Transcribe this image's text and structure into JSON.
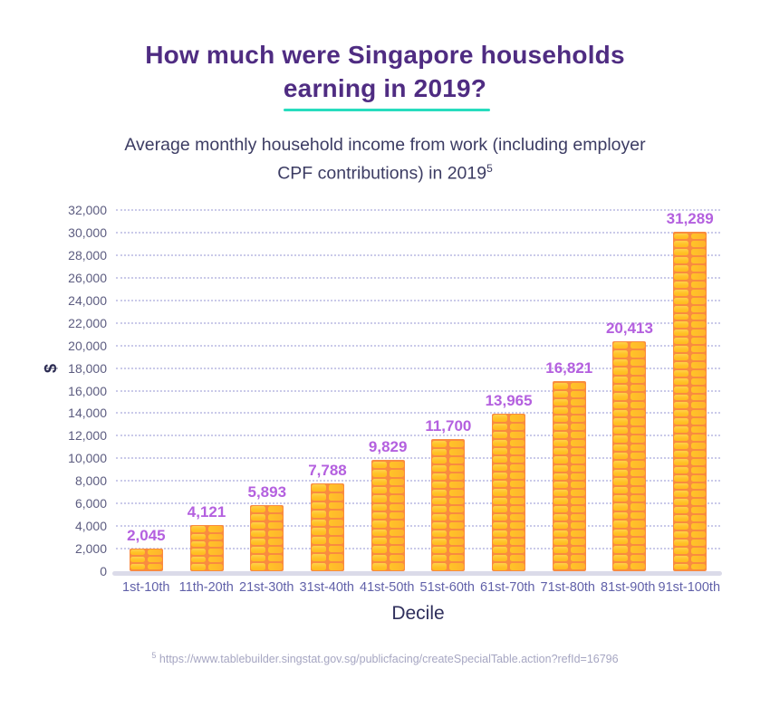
{
  "title": {
    "full": "How much were Singapore households earning in 2019?",
    "line1": "How much were Singapore households",
    "line2": "earning in 2019?"
  },
  "subtitle": {
    "full": "Average monthly household income from work (including employer CPF contributions) in 2019",
    "line1": "Average monthly household income from work (including employer",
    "line2": "CPF contributions) in 2019",
    "superscript": "5"
  },
  "chart_data": {
    "type": "bar",
    "title": "Average monthly household income from work (including employer CPF contributions) in 2019",
    "categories": [
      "1st-10th",
      "11th-20th",
      "21st-30th",
      "31st-40th",
      "41st-50th",
      "51st-60th",
      "61st-70th",
      "71st-80th",
      "81st-90th",
      "91st-100th"
    ],
    "values": [
      2045,
      4121,
      5893,
      7788,
      9829,
      11700,
      13965,
      16821,
      20413,
      31289
    ],
    "value_labels": [
      "2,045",
      "4,121",
      "5,893",
      "7,788",
      "9,829",
      "11,700",
      "13,965",
      "16,821",
      "20,413",
      "31,289"
    ],
    "xlabel": "Decile",
    "ylabel": "$",
    "ylim": [
      0,
      32000
    ],
    "ytick_interval": 2000,
    "ytick_labels": [
      "0",
      "2,000",
      "4,000",
      "6,000",
      "8,000",
      "10,000",
      "12,000",
      "14,000",
      "16,000",
      "18,000",
      "20,000",
      "22,000",
      "24,000",
      "26,000",
      "28,000",
      "30,000",
      "32,000"
    ],
    "grid": "horizontal-dotted",
    "legend": "none",
    "bar_style": "coin-stack"
  },
  "footnote": {
    "superscript": "5",
    "text": "https://www.tablebuilder.singstat.gov.sg/publicfacing/createSpecialTable.action?refId=16796"
  },
  "colors": {
    "title": "#4F2C82",
    "underline_accent": "#27DCBE",
    "subtitle": "#3C3C63",
    "bar_orange": "#F98B3F",
    "coin_yellow": "#FFC227",
    "value_label": "#B460DF",
    "y_tick": "#5C5C80",
    "x_tick": "#6161A9",
    "axis_title": "#2F2F5C",
    "gridline": "#CACAE9",
    "baseline": "#DBDBE9",
    "footnote": "#A6A6C2",
    "background": "#FFFFFF"
  }
}
